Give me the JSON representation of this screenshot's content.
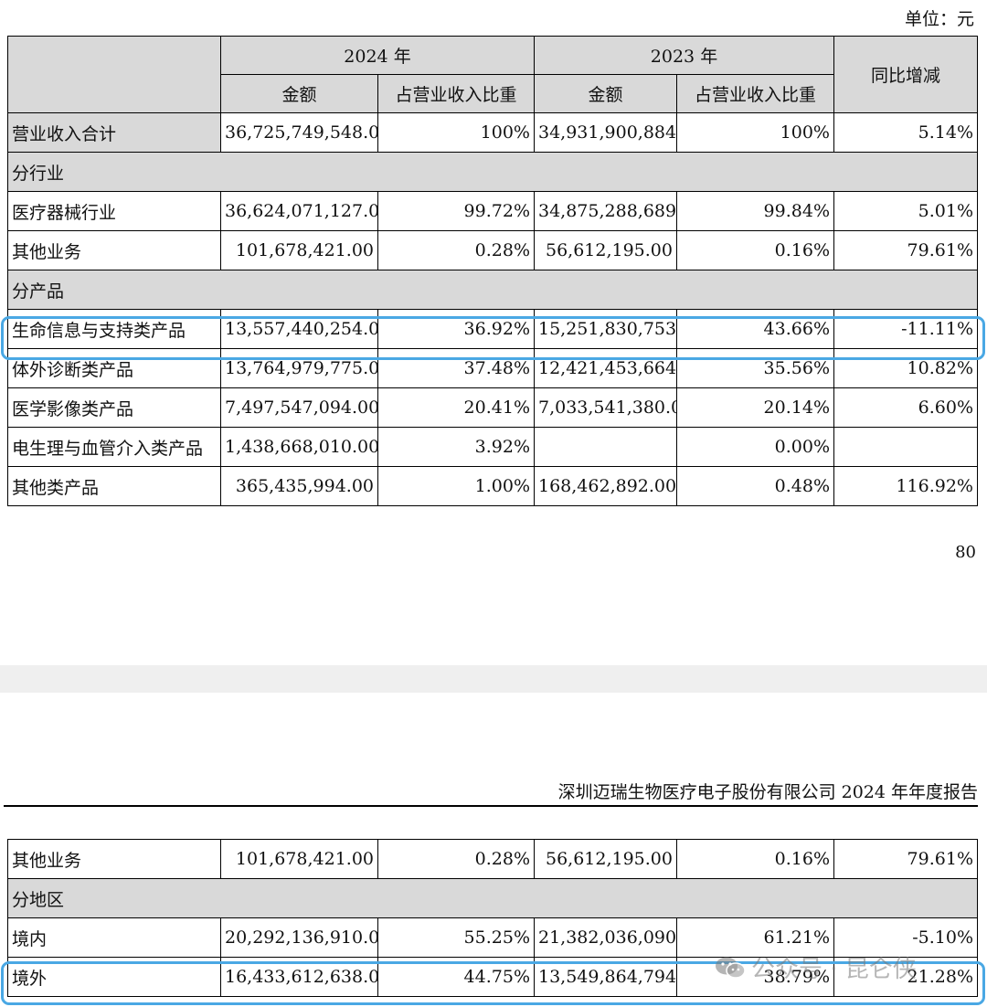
{
  "unit_label": "单位：元",
  "header": {
    "col_2024": "2024 年",
    "col_2023": "2023 年",
    "col_change": "同比增减",
    "sub_amount": "金额",
    "sub_ratio": "占营业收入比重"
  },
  "table1": {
    "total": {
      "label": "营业收入合计",
      "a24": "36,725,749,548.00",
      "r24": "100%",
      "a23": "34,931,900,884.00",
      "r23": "100%",
      "chg": "5.14%"
    },
    "sec_industry": "分行业",
    "medical": {
      "label": "医疗器械行业",
      "a24": "36,624,071,127.00",
      "r24": "99.72%",
      "a23": "34,875,288,689.00",
      "r23": "99.84%",
      "chg": "5.01%"
    },
    "other_biz": {
      "label": "其他业务",
      "a24": "101,678,421.00",
      "r24": "0.28%",
      "a23": "56,612,195.00",
      "r23": "0.16%",
      "chg": "79.61%"
    },
    "sec_product": "分产品",
    "life": {
      "label": "生命信息与支持类产品",
      "a24": "13,557,440,254.00",
      "r24": "36.92%",
      "a23": "15,251,830,753.00",
      "r23": "43.66%",
      "chg": "-11.11%"
    },
    "ivd": {
      "label": "体外诊断类产品",
      "a24": "13,764,979,775.00",
      "r24": "37.48%",
      "a23": "12,421,453,664.00",
      "r23": "35.56%",
      "chg": "10.82%"
    },
    "imaging": {
      "label": "医学影像类产品",
      "a24": "7,497,547,094.00",
      "r24": "20.41%",
      "a23": "7,033,541,380.00",
      "r23": "20.14%",
      "chg": "6.60%"
    },
    "ep": {
      "label": "电生理与血管介入类产品",
      "a24": "1,438,668,010.00",
      "r24": "3.92%",
      "a23": "",
      "r23": "0.00%",
      "chg": ""
    },
    "other_prod": {
      "label": "其他类产品",
      "a24": "365,435,994.00",
      "r24": "1.00%",
      "a23": "168,462,892.00",
      "r23": "0.48%",
      "chg": "116.92%"
    }
  },
  "page_number": "80",
  "running_header": "深圳迈瑞生物医疗电子股份有限公司 2024 年年度报告",
  "table2": {
    "other_biz": {
      "label": "其他业务",
      "a24": "101,678,421.00",
      "r24": "0.28%",
      "a23": "56,612,195.00",
      "r23": "0.16%",
      "chg": "79.61%"
    },
    "sec_region": "分地区",
    "domestic": {
      "label": "境内",
      "a24": "20,292,136,910.00",
      "r24": "55.25%",
      "a23": "21,382,036,090.00",
      "r23": "61.21%",
      "chg": "-5.10%"
    },
    "overseas": {
      "label": "境外",
      "a24": "16,433,612,638.00",
      "r24": "44.75%",
      "a23": "13,549,864,794.00",
      "r23": "38.79%",
      "chg": "21.28%"
    }
  },
  "watermark": {
    "text": "公众号 · 昆仑侠",
    "icon": "wechat-icon"
  },
  "highlight_color": "#4aa8e4"
}
